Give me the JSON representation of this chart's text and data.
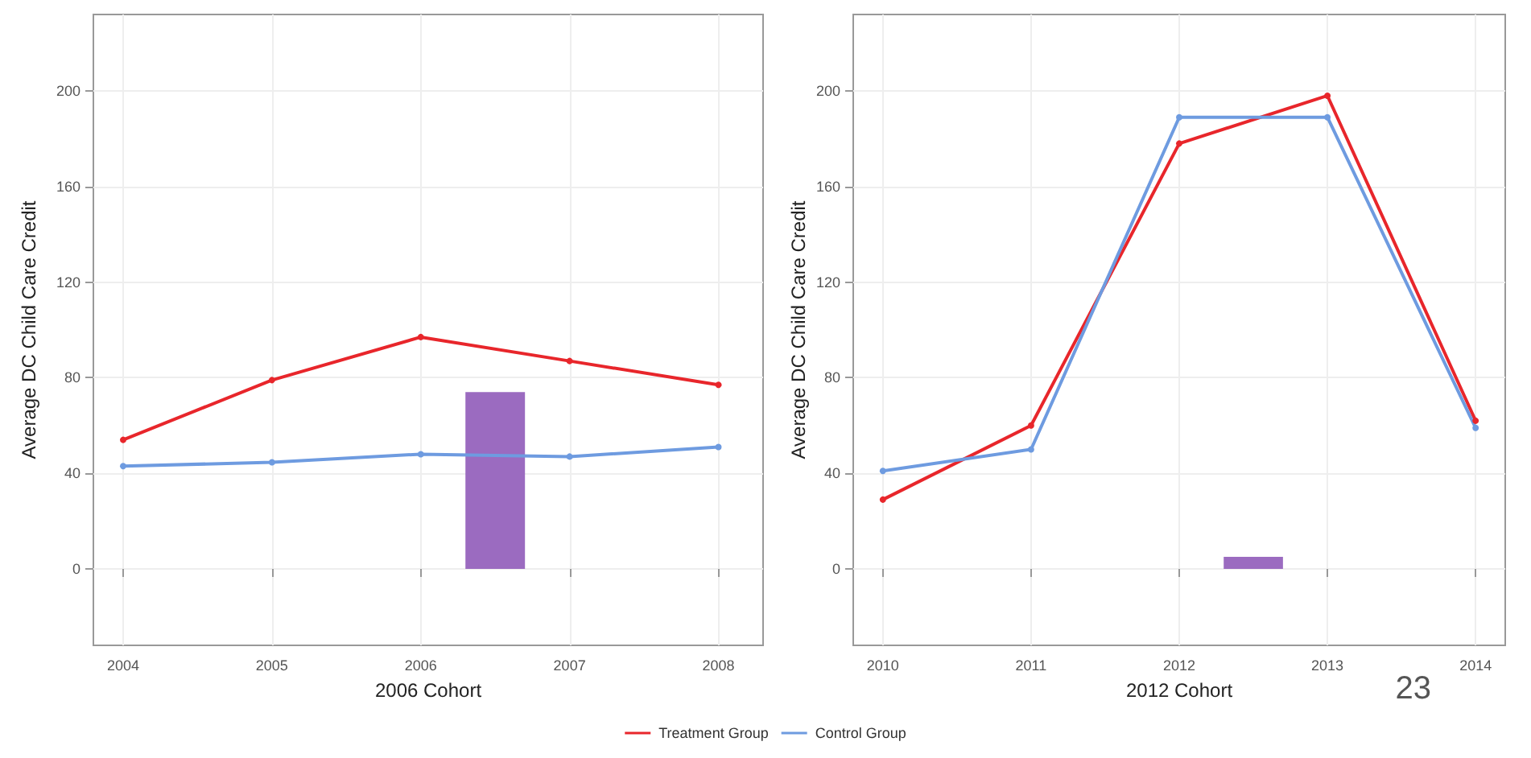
{
  "chart_data": [
    {
      "type": "line",
      "xlabel": "2006 Cohort",
      "ylabel": "Average DC Child Care Credit",
      "x": [
        2004,
        2005,
        2006,
        2007,
        2008
      ],
      "xlim": [
        2003.8,
        2008.3
      ],
      "xticks": [
        2004,
        2005,
        2006,
        2007,
        2008
      ],
      "ylim": [
        -32,
        232
      ],
      "yticks": [
        0,
        40,
        80,
        120,
        160,
        200
      ],
      "grid": true,
      "legend": false,
      "marker": "circle",
      "line_style": "solid",
      "series": [
        {
          "color": "#e8262b",
          "values": [
            54,
            79,
            97,
            87,
            77
          ]
        },
        {
          "color": "#6e9be0",
          "values": [
            43,
            44.6,
            48,
            47,
            51
          ]
        },
        {
          "type": "bar",
          "color": "#9b6bc0",
          "x": [
            2006.5
          ],
          "values": [
            74
          ]
        }
      ]
    },
    {
      "type": "line",
      "xlabel": "2012 Cohort",
      "ylabel": "Average DC Child Care Credit",
      "x": [
        2010,
        2011,
        2012,
        2013,
        2014
      ],
      "xlim": [
        2009.8,
        2014.2
      ],
      "xticks": [
        2010,
        2011,
        2012,
        2013,
        2014
      ],
      "ylim": [
        -32,
        232
      ],
      "yticks": [
        0,
        40,
        80,
        120,
        160,
        200
      ],
      "grid": true,
      "legend": "bottom",
      "marker": "circle",
      "line_style": "solid",
      "annotations": [
        "23"
      ],
      "series": [
        {
          "name": "Treatment Group",
          "color": "#e8262b",
          "values": [
            29,
            60,
            178,
            198,
            62
          ]
        },
        {
          "name": "Control Group",
          "color": "#6e9be0",
          "values": [
            41,
            50,
            189,
            189,
            59
          ]
        },
        {
          "type": "bar",
          "color": "#9b6bc0",
          "x": [
            2012.5
          ],
          "values": [
            5
          ]
        }
      ]
    }
  ]
}
